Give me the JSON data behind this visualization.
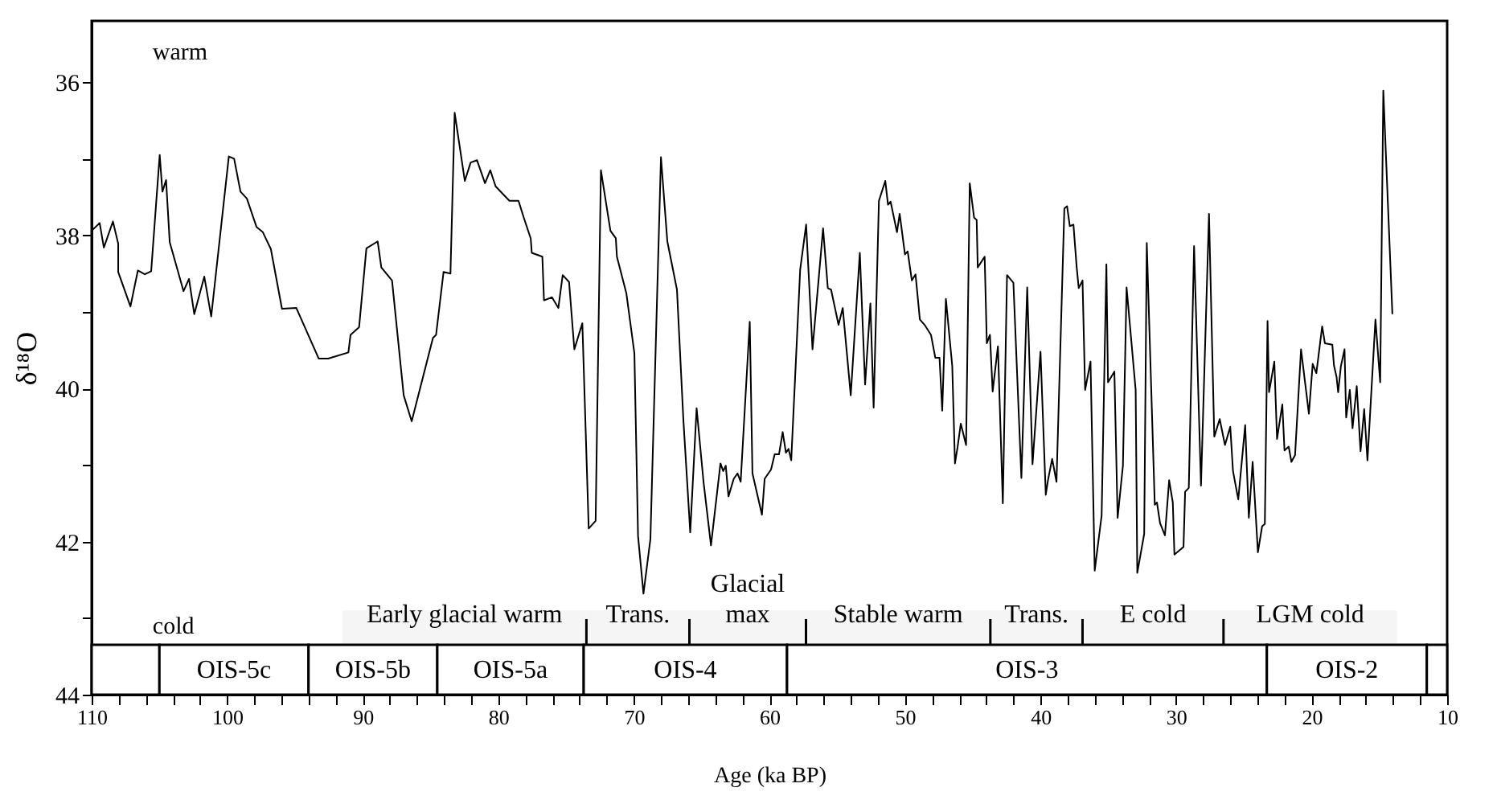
{
  "chart_data": {
    "type": "line",
    "xlabel": "Age (ka BP)",
    "ylabel": "δ¹⁸O",
    "color": "#000000",
    "line_style": "solid",
    "xlim": [
      110,
      10
    ],
    "ylim": [
      44,
      35.2
    ],
    "xticks": [
      110,
      {
        "value": 108,
        "label": null
      },
      {
        "value": 106,
        "label": null
      },
      {
        "value": 104,
        "label": null
      },
      {
        "value": 102,
        "label": null
      },
      100,
      {
        "value": 98,
        "label": null
      },
      {
        "value": 96,
        "label": null
      },
      {
        "value": 94,
        "label": null
      },
      {
        "value": 92,
        "label": null
      },
      90,
      {
        "value": 88,
        "label": null
      },
      {
        "value": 86,
        "label": null
      },
      {
        "value": 84,
        "label": null
      },
      {
        "value": 82,
        "label": null
      },
      80,
      {
        "value": 78,
        "label": null
      },
      {
        "value": 76,
        "label": null
      },
      {
        "value": 74,
        "label": null
      },
      {
        "value": 72,
        "label": null
      },
      70,
      {
        "value": 68,
        "label": null
      },
      {
        "value": 66,
        "label": null
      },
      {
        "value": 64,
        "label": null
      },
      {
        "value": 62,
        "label": null
      },
      60,
      {
        "value": 58,
        "label": null
      },
      {
        "value": 56,
        "label": null
      },
      {
        "value": 54,
        "label": null
      },
      {
        "value": 52,
        "label": null
      },
      50,
      {
        "value": 48,
        "label": null
      },
      {
        "value": 46,
        "label": null
      },
      {
        "value": 44,
        "label": null
      },
      {
        "value": 42,
        "label": null
      },
      40,
      {
        "value": 38,
        "label": null
      },
      {
        "value": 36,
        "label": null
      },
      {
        "value": 34,
        "label": null
      },
      {
        "value": 32,
        "label": null
      },
      30,
      {
        "value": 28,
        "label": null
      },
      {
        "value": 26,
        "label": null
      },
      {
        "value": 24,
        "label": null
      },
      {
        "value": 22,
        "label": null
      },
      20,
      {
        "value": 18,
        "label": null
      },
      {
        "value": 16,
        "label": null
      },
      {
        "value": 14,
        "label": null
      },
      {
        "value": 12,
        "label": null
      },
      10
    ],
    "yticks": [
      36,
      {
        "value": 37,
        "label": null
      },
      38,
      {
        "value": 39,
        "label": null
      },
      40,
      {
        "value": 41,
        "label": null
      },
      42,
      {
        "value": 43,
        "label": null
      },
      44
    ],
    "x": [
      110,
      109.41,
      109.1,
      108.43,
      108.04,
      108.04,
      107.14,
      106.59,
      106.08,
      105.61,
      104.98,
      104.78,
      104.51,
      104.24,
      103.22,
      102.82,
      102.43,
      101.69,
      101.18,
      99.88,
      99.49,
      99.02,
      98.55,
      97.84,
      97.37,
      96.78,
      95.96,
      94.9,
      93.25,
      92.55,
      91.06,
      90.9,
      90.27,
      89.73,
      88.9,
      88.63,
      87.84,
      86.98,
      86.39,
      84.82,
      84.59,
      84.04,
      83.53,
      83.22,
      82.47,
      82.04,
      81.57,
      80.98,
      80.59,
      80.2,
      79.18,
      78.51,
      78.12,
      77.61,
      77.53,
      76.75,
      76.63,
      76.04,
      75.57,
      75.25,
      74.78,
      74.39,
      73.8,
      73.33,
      72.82,
      72.43,
      71.73,
      71.33,
      71.25,
      70.55,
      69.96,
      69.69,
      69.29,
      68.78,
      68.0,
      67.53,
      66.82,
      66.35,
      65.84,
      65.37,
      64.86,
      64.31,
      63.61,
      63.41,
      63.22,
      63.02,
      62.63,
      62.35,
      62.12,
      61.45,
      61.25,
      60.55,
      60.35,
      59.88,
      59.61,
      59.29,
      59.02,
      58.78,
      58.59,
      58.39,
      57.73,
      57.29,
      56.82,
      56.47,
      56.04,
      55.69,
      55.45,
      54.9,
      54.59,
      54.0,
      53.33,
      52.94,
      52.55,
      52.31,
      51.92,
      51.45,
      51.25,
      51.06,
      50.59,
      50.39,
      50.0,
      49.8,
      49.49,
      49.22,
      48.9,
      48.55,
      48.08,
      47.76,
      47.45,
      47.25,
      46.98,
      46.51,
      46.31,
      46.12,
      45.88,
      45.49,
      45.22,
      44.9,
      44.71,
      44.63,
      44.12,
      43.96,
      43.73,
      43.53,
      43.14,
      42.78,
      42.47,
      42.0,
      41.41,
      40.98,
      40.59,
      40.0,
      39.61,
      39.45,
      39.14,
      38.82,
      38.24,
      38.04,
      37.84,
      37.57,
      37.33,
      37.18,
      36.9,
      36.71,
      36.31,
      36.0,
      35.49,
      35.14,
      35.02,
      34.55,
      34.31,
      33.92,
      33.65,
      32.98,
      32.86,
      32.35,
      32.16,
      31.57,
      31.41,
      31.18,
      30.82,
      30.51,
      30.24,
      30.12,
      29.45,
      29.33,
      29.06,
      28.67,
      28.16,
      27.57,
      27.18,
      26.78,
      26.39,
      26.0,
      25.8,
      25.41,
      24.9,
      24.63,
      24.35,
      23.96,
      23.65,
      23.45,
      23.25,
      23.14,
      22.75,
      22.55,
      22.16,
      22.0,
      21.69,
      21.49,
      21.22,
      20.78,
      20.2,
      19.92,
      19.65,
      19.22,
      19.02,
      18.47,
      18.35,
      18.16,
      18.04,
      17.84,
      17.57,
      17.45,
      17.18,
      16.98,
      16.67,
      16.39,
      16.12,
      15.88,
      15.29,
      14.94,
      14.71,
      14.04
    ],
    "values": [
      37.94,
      37.84,
      38.16,
      37.82,
      38.11,
      38.48,
      38.93,
      38.46,
      38.51,
      38.47,
      36.95,
      37.43,
      37.28,
      38.09,
      38.73,
      38.57,
      39.03,
      38.54,
      39.06,
      36.97,
      37.0,
      37.43,
      37.52,
      37.89,
      37.96,
      38.18,
      38.96,
      38.95,
      39.61,
      39.61,
      39.53,
      39.3,
      39.2,
      38.17,
      38.08,
      38.42,
      38.59,
      40.09,
      40.43,
      39.34,
      39.3,
      38.48,
      38.5,
      36.4,
      37.29,
      37.05,
      37.02,
      37.32,
      37.15,
      37.36,
      37.55,
      37.55,
      37.77,
      38.04,
      38.23,
      38.28,
      38.85,
      38.81,
      38.95,
      38.52,
      38.61,
      39.49,
      39.15,
      41.83,
      41.73,
      37.15,
      37.94,
      38.04,
      38.28,
      38.76,
      39.54,
      41.93,
      42.68,
      41.97,
      36.98,
      38.08,
      38.71,
      40.4,
      41.88,
      40.26,
      41.22,
      42.05,
      40.98,
      41.08,
      41.01,
      41.41,
      41.18,
      41.11,
      41.22,
      39.13,
      41.11,
      41.65,
      41.18,
      41.06,
      40.86,
      40.86,
      40.57,
      40.84,
      40.79,
      40.94,
      38.45,
      37.86,
      39.49,
      38.78,
      37.91,
      38.69,
      38.71,
      39.17,
      38.95,
      40.09,
      38.23,
      39.95,
      38.89,
      40.25,
      37.55,
      37.29,
      37.6,
      37.56,
      37.96,
      37.72,
      38.25,
      38.21,
      38.59,
      38.51,
      39.1,
      39.17,
      39.3,
      39.6,
      39.6,
      40.29,
      38.83,
      39.71,
      40.98,
      40.77,
      40.46,
      40.74,
      37.32,
      37.77,
      37.8,
      38.42,
      38.28,
      39.41,
      39.3,
      40.04,
      39.45,
      41.5,
      38.52,
      38.62,
      41.17,
      38.68,
      40.99,
      39.52,
      41.39,
      41.2,
      40.92,
      41.22,
      37.65,
      37.62,
      37.88,
      37.86,
      38.42,
      38.69,
      38.59,
      40.02,
      39.65,
      42.38,
      41.66,
      38.38,
      39.92,
      39.78,
      41.69,
      41.01,
      38.68,
      40.02,
      42.41,
      41.9,
      38.1,
      41.52,
      41.49,
      41.76,
      41.92,
      41.2,
      41.49,
      42.17,
      42.07,
      41.35,
      41.3,
      38.14,
      41.27,
      37.72,
      40.63,
      40.4,
      40.74,
      40.5,
      41.08,
      41.45,
      40.48,
      41.69,
      40.96,
      42.14,
      41.8,
      41.77,
      39.12,
      40.05,
      39.65,
      40.66,
      40.21,
      40.81,
      40.76,
      40.96,
      40.87,
      39.49,
      40.33,
      39.68,
      39.8,
      39.19,
      39.41,
      39.43,
      39.7,
      39.85,
      40.05,
      39.71,
      39.49,
      40.38,
      40.02,
      40.52,
      39.97,
      40.82,
      40.27,
      40.94,
      39.1,
      39.92,
      36.11,
      39.03
    ],
    "bands": [
      {
        "axis": "x",
        "from": 110,
        "to": 105,
        "color": "#ffffff"
      },
      {
        "axis": "x",
        "from": 105,
        "to": 94,
        "label": "OIS-5c",
        "color": "#ffffff"
      },
      {
        "axis": "x",
        "from": 94,
        "to": 84.5,
        "label": "OIS-5b",
        "color": "#ffffff"
      },
      {
        "axis": "x",
        "from": 84.5,
        "to": 73.7,
        "label": "OIS-5a",
        "color": "#ffffff"
      },
      {
        "axis": "x",
        "from": 73.7,
        "to": 58.7,
        "label": "OIS-4",
        "color": "#ffffff"
      },
      {
        "axis": "x",
        "from": 58.7,
        "to": 23.3,
        "label": "OIS-3",
        "color": "#ffffff"
      },
      {
        "axis": "x",
        "from": 23.3,
        "to": 11.5,
        "label": "OIS-2",
        "color": "#ffffff"
      },
      {
        "axis": "x",
        "from": 11.5,
        "to": 10,
        "color": "#ffffff"
      },
      {
        "axis": "x",
        "from": 91.5,
        "to": 73.5,
        "label": "Early glacial warm",
        "color": "#f5f5f5"
      },
      {
        "axis": "x",
        "from": 73.5,
        "to": 65.9,
        "label": "Trans.",
        "color": "#f5f5f5"
      },
      {
        "axis": "x",
        "from": 65.9,
        "to": 57.3,
        "label": "Glacial\nmax",
        "color": "#f5f5f5"
      },
      {
        "axis": "x",
        "from": 57.3,
        "to": 43.7,
        "label": "Stable warm",
        "color": "#f5f5f5"
      },
      {
        "axis": "x",
        "from": 43.7,
        "to": 36.9,
        "label": "Trans.",
        "color": "#f5f5f5"
      },
      {
        "axis": "x",
        "from": 36.9,
        "to": 26.5,
        "label": "E cold",
        "color": "#f5f5f5"
      },
      {
        "axis": "x",
        "from": 26.5,
        "to": 13.7,
        "label": "LGM cold",
        "color": "#f5f5f5"
      }
    ],
    "annotations": [
      "warm",
      "cold"
    ]
  }
}
